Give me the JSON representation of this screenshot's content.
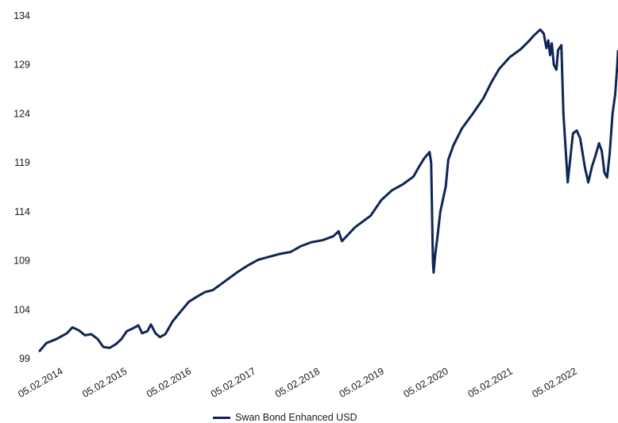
{
  "chart_data": {
    "type": "line",
    "title": "",
    "xlabel": "",
    "ylabel": "",
    "ylim": [
      99,
      134
    ],
    "yticks": [
      99,
      104,
      109,
      114,
      119,
      124,
      129,
      134
    ],
    "ytick_labels": [
      "99",
      "104",
      "109",
      "114",
      "119",
      "124",
      "129",
      "134"
    ],
    "xlim": [
      "2014-02-05",
      "2023-02-05"
    ],
    "xticks": [
      "2014-02-05",
      "2015-02-05",
      "2016-02-05",
      "2017-02-05",
      "2018-02-05",
      "2019-02-05",
      "2020-02-05",
      "2021-02-05",
      "2022-02-05"
    ],
    "xtick_labels": [
      "05.02.2014",
      "05.02.2015",
      "05.02.2016",
      "05.02.2017",
      "05.02.2018",
      "05.02.2019",
      "05.02.2020",
      "05.02.2021",
      "05.02.2022"
    ],
    "grid": false,
    "legend_position": "bottom-center",
    "colors": {
      "series": "#0f2557",
      "text": "#1a1a1a"
    },
    "series": [
      {
        "name": "Swan Bond Enhanced USD",
        "points": [
          [
            "2014-02-05",
            99.8
          ],
          [
            "2014-03-15",
            100.6
          ],
          [
            "2014-05-10",
            101.0
          ],
          [
            "2014-07-10",
            101.6
          ],
          [
            "2014-08-10",
            102.2
          ],
          [
            "2014-09-15",
            101.9
          ],
          [
            "2014-10-20",
            101.4
          ],
          [
            "2014-11-25",
            101.5
          ],
          [
            "2015-01-01",
            101.0
          ],
          [
            "2015-02-01",
            100.2
          ],
          [
            "2015-03-10",
            100.1
          ],
          [
            "2015-04-15",
            100.5
          ],
          [
            "2015-05-15",
            101.0
          ],
          [
            "2015-06-15",
            101.8
          ],
          [
            "2015-07-20",
            102.1
          ],
          [
            "2015-08-20",
            102.4
          ],
          [
            "2015-09-10",
            101.6
          ],
          [
            "2015-10-10",
            101.8
          ],
          [
            "2015-10-30",
            102.5
          ],
          [
            "2015-11-25",
            101.6
          ],
          [
            "2015-12-20",
            101.2
          ],
          [
            "2016-01-20",
            101.5
          ],
          [
            "2016-03-01",
            102.8
          ],
          [
            "2016-04-15",
            103.8
          ],
          [
            "2016-06-01",
            104.8
          ],
          [
            "2016-07-15",
            105.3
          ],
          [
            "2016-09-01",
            105.8
          ],
          [
            "2016-10-15",
            106.0
          ],
          [
            "2016-12-01",
            106.6
          ],
          [
            "2017-01-15",
            107.2
          ],
          [
            "2017-03-01",
            107.8
          ],
          [
            "2017-05-01",
            108.5
          ],
          [
            "2017-07-01",
            109.1
          ],
          [
            "2017-09-01",
            109.4
          ],
          [
            "2017-11-01",
            109.7
          ],
          [
            "2018-01-01",
            109.9
          ],
          [
            "2018-03-01",
            110.5
          ],
          [
            "2018-05-01",
            110.9
          ],
          [
            "2018-07-01",
            111.1
          ],
          [
            "2018-09-01",
            111.5
          ],
          [
            "2018-10-01",
            112.0
          ],
          [
            "2018-10-20",
            111.0
          ],
          [
            "2018-11-20",
            111.6
          ],
          [
            "2019-01-01",
            112.4
          ],
          [
            "2019-02-15",
            113.0
          ],
          [
            "2019-04-01",
            113.6
          ],
          [
            "2019-06-01",
            115.2
          ],
          [
            "2019-08-01",
            116.2
          ],
          [
            "2019-10-01",
            116.8
          ],
          [
            "2019-12-01",
            117.6
          ],
          [
            "2020-01-01",
            118.6
          ],
          [
            "2020-02-01",
            119.5
          ],
          [
            "2020-03-01",
            120.1
          ],
          [
            "2020-03-10",
            119.0
          ],
          [
            "2020-03-16",
            113.0
          ],
          [
            "2020-03-20",
            109.0
          ],
          [
            "2020-03-24",
            107.8
          ],
          [
            "2020-04-01",
            109.5
          ],
          [
            "2020-04-15",
            111.5
          ],
          [
            "2020-05-01",
            114.0
          ],
          [
            "2020-06-01",
            116.6
          ],
          [
            "2020-06-15",
            119.3
          ],
          [
            "2020-07-15",
            120.8
          ],
          [
            "2020-09-01",
            122.5
          ],
          [
            "2020-11-01",
            124.0
          ],
          [
            "2021-01-01",
            125.6
          ],
          [
            "2021-02-15",
            127.2
          ],
          [
            "2021-04-01",
            128.6
          ],
          [
            "2021-06-01",
            129.8
          ],
          [
            "2021-08-01",
            130.6
          ],
          [
            "2021-09-15",
            131.4
          ],
          [
            "2021-10-15",
            132.0
          ],
          [
            "2021-11-20",
            132.6
          ],
          [
            "2021-12-10",
            132.2
          ],
          [
            "2021-12-25",
            130.7
          ],
          [
            "2022-01-05",
            131.5
          ],
          [
            "2022-01-15",
            130.0
          ],
          [
            "2022-01-25",
            131.2
          ],
          [
            "2022-02-05",
            129.0
          ],
          [
            "2022-02-20",
            128.5
          ],
          [
            "2022-03-01",
            130.5
          ],
          [
            "2022-03-20",
            131.0
          ],
          [
            "2022-04-01",
            124.0
          ],
          [
            "2022-04-15",
            120.0
          ],
          [
            "2022-04-25",
            117.0
          ],
          [
            "2022-05-10",
            119.5
          ],
          [
            "2022-05-25",
            122.0
          ],
          [
            "2022-06-15",
            122.3
          ],
          [
            "2022-07-05",
            121.5
          ],
          [
            "2022-08-01",
            118.5
          ],
          [
            "2022-08-20",
            117.0
          ],
          [
            "2022-09-10",
            118.6
          ],
          [
            "2022-10-01",
            119.8
          ],
          [
            "2022-10-20",
            121.0
          ],
          [
            "2022-11-05",
            120.2
          ],
          [
            "2022-11-20",
            118.0
          ],
          [
            "2022-12-05",
            117.5
          ],
          [
            "2022-12-20",
            120.0
          ],
          [
            "2023-01-05",
            124.0
          ],
          [
            "2023-01-20",
            126.0
          ],
          [
            "2023-02-01",
            129.0
          ],
          [
            "2023-02-05",
            130.4
          ]
        ]
      }
    ]
  }
}
